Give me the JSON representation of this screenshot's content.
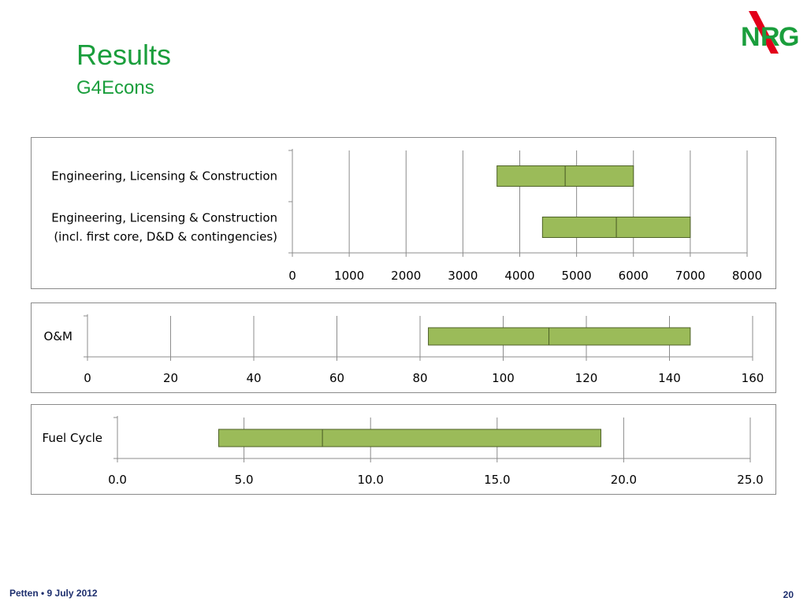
{
  "slide": {
    "title": "Results",
    "subtitle": "G4Econs",
    "footer_left": "Petten • 9 July 2012",
    "page_number": "20",
    "logo_text": "NRG",
    "accent_color": "#1a9e3c",
    "logo_red": "#e2001a"
  },
  "chart_data": [
    {
      "type": "bar",
      "orientation": "horizontal-floating-range",
      "categories": [
        [
          "Engineering, Licensing & Construction"
        ],
        [
          "Engineering, Licensing & Construction",
          "(incl. first core, D&D & contingencies)"
        ]
      ],
      "ranges": [
        {
          "low": 3600,
          "mid": 4800,
          "high": 6000
        },
        {
          "low": 4400,
          "mid": 5700,
          "high": 7000
        }
      ],
      "xlim": [
        0,
        8000
      ],
      "xticks": [
        "0",
        "1000",
        "2000",
        "3000",
        "4000",
        "5000",
        "6000",
        "7000",
        "8000"
      ],
      "grid": true,
      "bar_color": "#9bbb59",
      "bar_border": "#4f6228"
    },
    {
      "type": "bar",
      "orientation": "horizontal-floating-range",
      "categories": [
        [
          "O&M"
        ]
      ],
      "ranges": [
        {
          "low": 82,
          "mid": 111,
          "high": 145
        }
      ],
      "xlim": [
        0,
        160
      ],
      "xticks": [
        "0",
        "20",
        "40",
        "60",
        "80",
        "100",
        "120",
        "140",
        "160"
      ],
      "grid": true,
      "bar_color": "#9bbb59",
      "bar_border": "#4f6228"
    },
    {
      "type": "bar",
      "orientation": "horizontal-floating-range",
      "categories": [
        [
          "Fuel Cycle"
        ]
      ],
      "ranges": [
        {
          "low": 4.0,
          "mid": 8.1,
          "high": 19.1
        }
      ],
      "xlim": [
        0,
        25
      ],
      "xticks": [
        "0.0",
        "5.0",
        "10.0",
        "15.0",
        "20.0",
        "25.0"
      ],
      "grid": true,
      "bar_color": "#9bbb59",
      "bar_border": "#4f6228"
    }
  ]
}
